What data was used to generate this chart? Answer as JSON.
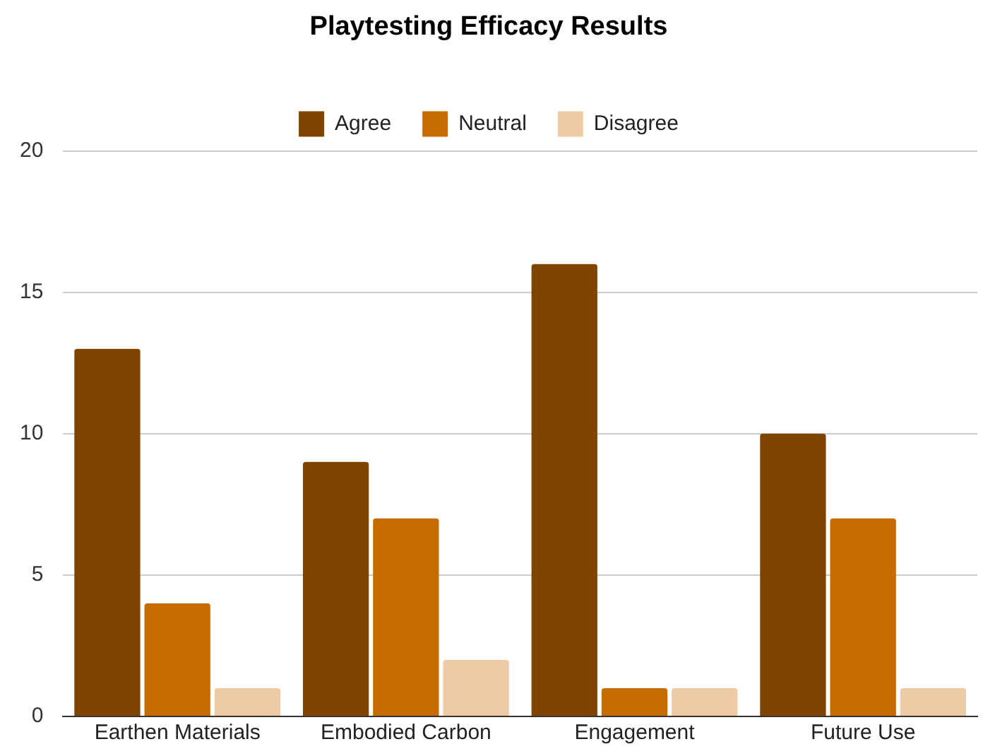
{
  "chart_data": {
    "type": "bar",
    "title": "Playtesting Efficacy Results",
    "categories": [
      "Earthen Materials",
      "Embodied Carbon",
      "Engagement",
      "Future Use"
    ],
    "series": [
      {
        "name": "Agree",
        "color": "#7f4500",
        "values": [
          13,
          9,
          16,
          10
        ]
      },
      {
        "name": "Neutral",
        "color": "#c66b00",
        "values": [
          4,
          7,
          1,
          7
        ]
      },
      {
        "name": "Disagree",
        "color": "#edcba4",
        "values": [
          1,
          2,
          1,
          1
        ]
      }
    ],
    "ylim": [
      0,
      20
    ],
    "yticks": [
      0,
      5,
      10,
      15,
      20
    ],
    "grid": "y",
    "legend": "top"
  }
}
